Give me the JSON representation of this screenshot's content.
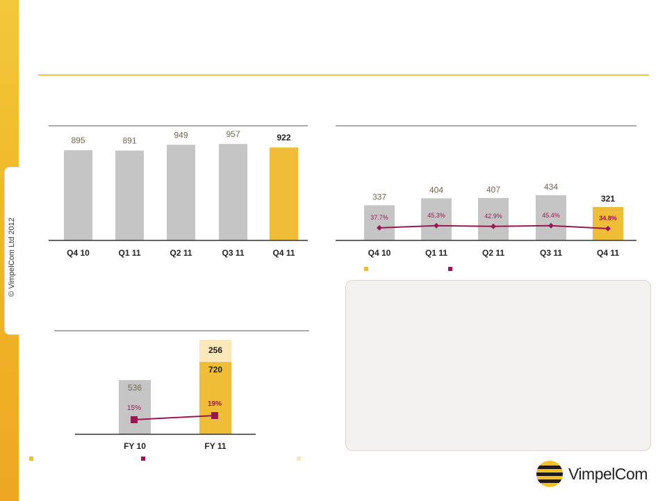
{
  "copyright": "© VimpelCom Ltd 2012",
  "brand": {
    "logo_text": "VimpelCom"
  },
  "colors": {
    "gray_bar": "#c5c5c5",
    "gold_bar": "#f0bd36",
    "light_gold": "#fbe7b8",
    "maroon": "#9b1552",
    "axis": "#333333",
    "rule": "#555555",
    "accent": "#f0c040"
  },
  "chart_data": [
    {
      "type": "bar",
      "categories": [
        "Q4 10",
        "Q1 11",
        "Q2 11",
        "Q3 11",
        "Q4 11"
      ],
      "values": [
        895,
        891,
        949,
        957,
        922
      ],
      "value_labels": [
        "895",
        "891",
        "949",
        "957",
        "922"
      ],
      "highlight_index": 4,
      "ylim": [
        0,
        1020
      ]
    },
    {
      "type": "bar",
      "categories": [
        "Q4 10",
        "Q1 11",
        "Q2 11",
        "Q3 11",
        "Q4 11"
      ],
      "values": [
        337,
        404,
        407,
        434,
        321
      ],
      "value_labels": [
        "337",
        "404",
        "407",
        "434",
        "321"
      ],
      "highlight_index": 4,
      "ylim": [
        0,
        480
      ],
      "line": {
        "values": [
          37.7,
          45.3,
          42.9,
          45.4,
          34.8
        ],
        "labels": [
          "37.7%",
          "45.3%",
          "42.9%",
          "45.4%",
          "34.8%"
        ]
      }
    },
    {
      "type": "bar",
      "categories": [
        "FY 10",
        "FY 11"
      ],
      "values": [
        536,
        720
      ],
      "value_labels": [
        "536",
        "720"
      ],
      "stacked_extra": [
        0,
        256
      ],
      "stacked_labels": [
        "",
        "256"
      ],
      "highlight_index": 1,
      "ylim": [
        0,
        1020
      ],
      "line": {
        "values": [
          15,
          19
        ],
        "labels": [
          "15%",
          "19%"
        ]
      }
    }
  ]
}
